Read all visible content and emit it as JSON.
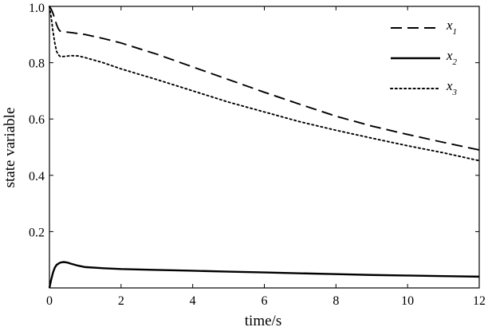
{
  "chart_data": {
    "type": "line",
    "xlabel": "time/s",
    "ylabel": "state variable",
    "xlim": [
      0,
      12
    ],
    "ylim": [
      0,
      1.0
    ],
    "x_ticks": [
      0,
      2,
      4,
      6,
      8,
      10,
      12
    ],
    "y_ticks": [
      0.2,
      0.4,
      0.6,
      0.8,
      1.0
    ],
    "y_tick_labels": [
      "0.2",
      "0.4",
      "0.6",
      "0.8",
      "1.0"
    ],
    "grid": false,
    "legend": "top-right",
    "series": [
      {
        "name": "x",
        "subscript": "1",
        "style": "dashed",
        "color": "#000000",
        "x": [
          0,
          0.05,
          0.1,
          0.15,
          0.2,
          0.25,
          0.3,
          0.4,
          0.6,
          1,
          1.5,
          2,
          3,
          4,
          5,
          6,
          7,
          8,
          9,
          10,
          11,
          12
        ],
        "y": [
          1.0,
          0.99,
          0.975,
          0.955,
          0.935,
          0.92,
          0.912,
          0.91,
          0.907,
          0.9,
          0.886,
          0.87,
          0.83,
          0.785,
          0.74,
          0.695,
          0.652,
          0.61,
          0.575,
          0.545,
          0.517,
          0.49
        ]
      },
      {
        "name": "x",
        "subscript": "2",
        "style": "solid",
        "color": "#000000",
        "x": [
          0,
          0.05,
          0.1,
          0.15,
          0.2,
          0.3,
          0.4,
          0.5,
          0.6,
          0.8,
          1,
          1.5,
          2,
          3,
          4,
          5,
          6,
          7,
          8,
          9,
          10,
          11,
          12
        ],
        "y": [
          0.0,
          0.03,
          0.055,
          0.072,
          0.082,
          0.09,
          0.092,
          0.09,
          0.086,
          0.079,
          0.074,
          0.07,
          0.067,
          0.064,
          0.061,
          0.058,
          0.055,
          0.052,
          0.049,
          0.046,
          0.044,
          0.042,
          0.04
        ]
      },
      {
        "name": "x",
        "subscript": "3",
        "style": "dotted",
        "color": "#000000",
        "x": [
          0,
          0.05,
          0.1,
          0.15,
          0.2,
          0.25,
          0.3,
          0.4,
          0.6,
          0.8,
          1,
          1.5,
          2,
          3,
          4,
          5,
          6,
          7,
          8,
          9,
          10,
          11,
          12
        ],
        "y": [
          1.0,
          0.96,
          0.91,
          0.87,
          0.84,
          0.828,
          0.822,
          0.822,
          0.825,
          0.824,
          0.818,
          0.8,
          0.778,
          0.74,
          0.7,
          0.66,
          0.625,
          0.59,
          0.56,
          0.532,
          0.505,
          0.48,
          0.452
        ]
      }
    ]
  }
}
